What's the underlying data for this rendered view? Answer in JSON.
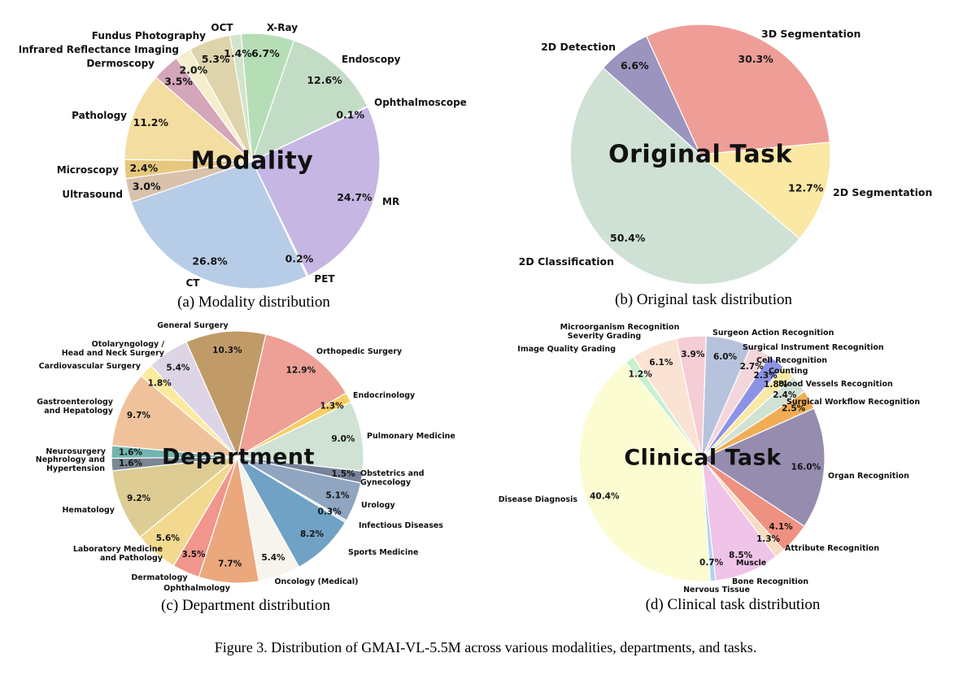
{
  "figure_caption": "Figure 3. Distribution of GMAI-VL-5.5M across various modalities, departments, and tasks.",
  "chart_data": [
    {
      "id": "modality",
      "type": "pie",
      "title": "Modality",
      "caption": "(a) Modality distribution",
      "slices": [
        {
          "label": "X-Ray",
          "value": 6.7,
          "pct": "6.7%",
          "color": "#b6deb6"
        },
        {
          "label": "Endoscopy",
          "value": 12.6,
          "pct": "12.6%",
          "color": "#c3dcc6"
        },
        {
          "label": "Ophthalmoscope",
          "value": 0.1,
          "pct": "0.1%",
          "color": "#ecc4d7"
        },
        {
          "label": "MR",
          "value": 24.7,
          "pct": "24.7%",
          "color": "#c5b6e3"
        },
        {
          "label": "PET",
          "value": 0.2,
          "pct": "0.2%",
          "color": "#e4ddf0"
        },
        {
          "label": "CT",
          "value": 26.8,
          "pct": "26.8%",
          "color": "#b7cde7"
        },
        {
          "label": "Ultrasound",
          "value": 3.0,
          "pct": "3.0%",
          "color": "#d8c2ac"
        },
        {
          "label": "Microscopy",
          "value": 2.4,
          "pct": "2.4%",
          "color": "#e6c77d"
        },
        {
          "label": "Pathology",
          "value": 11.2,
          "pct": "11.2%",
          "color": "#f3dda1"
        },
        {
          "label": "Dermoscopy",
          "value": 3.5,
          "pct": "3.5%",
          "color": "#d3a6b9"
        },
        {
          "label": "Infrared Reflectance Imaging",
          "value": 2.0,
          "pct": "2.0%",
          "color": "#f4eecd"
        },
        {
          "label": "Fundus Photography",
          "value": 5.3,
          "pct": "5.3%",
          "color": "#ded3ab"
        },
        {
          "label": "OCT",
          "value": 1.4,
          "pct": "1.4%",
          "color": "#d2e4cb"
        }
      ]
    },
    {
      "id": "original-task",
      "type": "pie",
      "title": "Original Task",
      "caption": "(b) Original task distribution",
      "slices": [
        {
          "label": "3D Segmentation",
          "value": 30.3,
          "pct": "30.3%",
          "color": "#ee9e97"
        },
        {
          "label": "2D Segmentation",
          "value": 12.7,
          "pct": "12.7%",
          "color": "#fae8a4"
        },
        {
          "label": "2D Classification",
          "value": 50.4,
          "pct": "50.4%",
          "color": "#cfe1d4"
        },
        {
          "label": "2D Detection",
          "value": 6.6,
          "pct": "6.6%",
          "color": "#9b94bf"
        }
      ]
    },
    {
      "id": "department",
      "type": "pie",
      "title": "Department",
      "caption": "(c) Department distribution",
      "slices": [
        {
          "label": "General Surgery",
          "value": 10.3,
          "pct": "10.3%",
          "color": "#c09b68"
        },
        {
          "label": "Orthopedic Surgery",
          "value": 12.9,
          "pct": "12.9%",
          "color": "#ee9f96"
        },
        {
          "label": "Endocrinology",
          "value": 1.3,
          "pct": "1.3%",
          "color": "#f8cd64"
        },
        {
          "label": "Pulmonary Medicine",
          "value": 9.0,
          "pct": "9.0%",
          "color": "#cfe2d3"
        },
        {
          "label": "Obstetrics and Gynecology",
          "value": 1.5,
          "pct": "1.5%",
          "color": "#76839b"
        },
        {
          "label": "Urology",
          "value": 5.1,
          "pct": "5.1%",
          "color": "#8fa5c0"
        },
        {
          "label": "Infectious Diseases",
          "value": 0.3,
          "pct": "0.3%",
          "color": "#d4e3ee"
        },
        {
          "label": "Sports Medicine",
          "value": 8.2,
          "pct": "8.2%",
          "color": "#70a2c5"
        },
        {
          "label": "Oncology (Medical)",
          "value": 5.4,
          "pct": "5.4%",
          "color": "#f6f4ec"
        },
        {
          "label": "Ophthalmology",
          "value": 7.7,
          "pct": "7.7%",
          "color": "#eba87d"
        },
        {
          "label": "Dermatology",
          "value": 3.5,
          "pct": "3.5%",
          "color": "#f0968c"
        },
        {
          "label": "Laboratory Medicine and Pathology",
          "value": 5.6,
          "pct": "5.6%",
          "color": "#f2d98f"
        },
        {
          "label": "Hematology",
          "value": 9.2,
          "pct": "9.2%",
          "color": "#ddcd94"
        },
        {
          "label": "Nephrology and Hypertension",
          "value": 1.6,
          "pct": "1.6%",
          "color": "#7b8894"
        },
        {
          "label": "Neurosurgery",
          "value": 1.6,
          "pct": "1.6%",
          "color": "#72b5ae"
        },
        {
          "label": "Gastroenterology and Hepatology",
          "value": 9.7,
          "pct": "9.7%",
          "color": "#efc29c"
        },
        {
          "label": "Cardiovascular Surgery",
          "value": 1.8,
          "pct": "1.8%",
          "color": "#fbeb9e"
        },
        {
          "label": "Otolaryngology / Head and Neck Surgery",
          "value": 5.4,
          "pct": "5.4%",
          "color": "#ddd4e6"
        }
      ]
    },
    {
      "id": "clinical-task",
      "type": "pie",
      "title": "Clinical Task",
      "caption": "(d) Clinical task distribution",
      "slices": [
        {
          "label": "Surgeon Action Recognition",
          "value": 6.0,
          "pct": "6.0%",
          "color": "#b7c3dd"
        },
        {
          "label": "Surgical Instrument Recognition",
          "value": 2.7,
          "pct": "2.7%",
          "color": "#f3d6da"
        },
        {
          "label": "Cell Recognition",
          "value": 2.3,
          "pct": "2.3%",
          "color": "#8c93e6"
        },
        {
          "label": "Counting",
          "value": 1.8,
          "pct": "1.8%",
          "color": "#fae9a6"
        },
        {
          "label": "Blood Vessels Recognition",
          "value": 2.4,
          "pct": "2.4%",
          "color": "#cfe2d4"
        },
        {
          "label": "Surgical Workflow Recognition",
          "value": 2.5,
          "pct": "2.5%",
          "color": "#f0ad55"
        },
        {
          "label": "Organ Recognition",
          "value": 16.0,
          "pct": "16.0%",
          "color": "#968cb0"
        },
        {
          "label": "Attribute Recognition",
          "value": 4.1,
          "pct": "4.1%",
          "color": "#ef9181"
        },
        {
          "label": "Muscle",
          "value": 1.3,
          "pct": "1.3%",
          "color": "#f8dcc0"
        },
        {
          "label": "Bone Recognition",
          "value": 8.5,
          "pct": "8.5%",
          "color": "#f0c3e9"
        },
        {
          "label": "Nervous Tissue",
          "value": 0.7,
          "pct": "0.7%",
          "color": "#aed3f0"
        },
        {
          "label": "Disease Diagnosis",
          "value": 40.4,
          "pct": "40.4%",
          "color": "#fcfcd2"
        },
        {
          "label": "Image Quality Grading",
          "value": 1.2,
          "pct": "1.2%",
          "color": "#c9f0cf"
        },
        {
          "label": "Severity Grading",
          "value": 6.1,
          "pct": "6.1%",
          "color": "#fae3d3"
        },
        {
          "label": "Microorganism Recognition",
          "value": 3.9,
          "pct": "3.9%",
          "color": "#f5cdd5"
        }
      ]
    }
  ]
}
